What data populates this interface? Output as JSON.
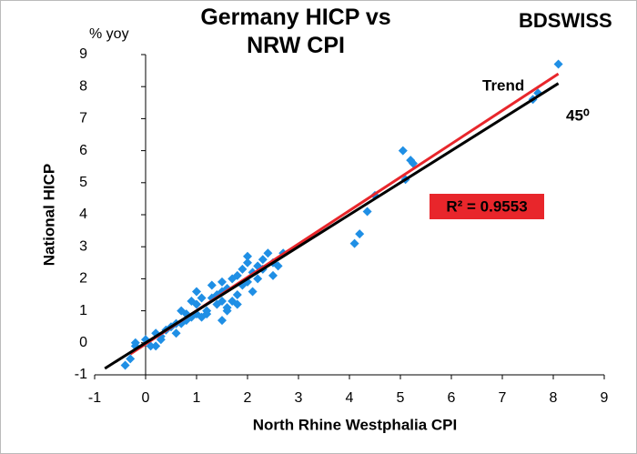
{
  "chart_data": {
    "type": "scatter",
    "title": "Germany HICP vs NRW CPI",
    "logo": "BDSWISS",
    "y_unit": "% yoy",
    "xlabel": "North Rhine Westphalia  CPI",
    "ylabel": "National HICP",
    "annotation": "R² = 0.9553",
    "xlim": [
      -1,
      9
    ],
    "ylim": [
      -1,
      9
    ],
    "xticks": [
      -1,
      0,
      1,
      2,
      3,
      4,
      5,
      6,
      7,
      8,
      9
    ],
    "yticks": [
      -1,
      0,
      1,
      2,
      3,
      4,
      5,
      6,
      7,
      8,
      9
    ],
    "series": [
      {
        "color": "#1f8fe5",
        "x": [
          8.1,
          7.7,
          7.6,
          5.05,
          5.2,
          5.25,
          5.1,
          4.5,
          4.35,
          4.2,
          4.1,
          -0.4,
          -0.3,
          -0.2,
          -0.2,
          0,
          0.1,
          0.2,
          0.3,
          0.2,
          0.4,
          0.5,
          0.6,
          0.7,
          0.8,
          0.9,
          0.9,
          1.0,
          1.0,
          1.1,
          1.2,
          1.3,
          1.4,
          1.5,
          1.5,
          1.6,
          1.5,
          1.6,
          1.7,
          1.8,
          1.8,
          1.9,
          2.0,
          2.0,
          2.1,
          2.2,
          2.3,
          2.4,
          2.5,
          2.5,
          2.6,
          2.7,
          1.2,
          1.3,
          0.7,
          0.8,
          1.0,
          1.7,
          1.9,
          2.0,
          2.2,
          1.4,
          1.1,
          0.6,
          0.3,
          1.6,
          1.8,
          2.3,
          1.5,
          2.1
        ],
        "values": [
          8.7,
          7.8,
          7.6,
          6.0,
          5.7,
          5.6,
          5.1,
          4.6,
          4.1,
          3.4,
          3.1,
          -0.7,
          -0.5,
          -0.1,
          0.0,
          0.1,
          -0.1,
          0.3,
          0.2,
          -0.1,
          0.4,
          0.5,
          0.3,
          0.6,
          0.9,
          1.3,
          0.8,
          1.2,
          1.6,
          0.8,
          1.0,
          1.4,
          1.5,
          1.9,
          1.3,
          1.7,
          0.7,
          1.1,
          2.0,
          2.1,
          1.5,
          2.3,
          2.5,
          1.9,
          2.2,
          2.0,
          2.6,
          2.8,
          2.5,
          2.1,
          2.4,
          2.8,
          0.9,
          1.8,
          1.0,
          0.7,
          0.9,
          1.3,
          1.8,
          2.7,
          2.4,
          1.2,
          1.4,
          0.6,
          0.1,
          1.0,
          1.2,
          2.3,
          1.6,
          1.6
        ]
      },
      {
        "name": "Trend",
        "color": "#e8262b",
        "x": [
          -0.3,
          8.1
        ],
        "values": [
          -0.35,
          8.4
        ]
      },
      {
        "name": "45⁰",
        "color": "#000000",
        "x": [
          -0.8,
          8.1
        ],
        "values": [
          -0.8,
          8.1
        ]
      }
    ]
  }
}
